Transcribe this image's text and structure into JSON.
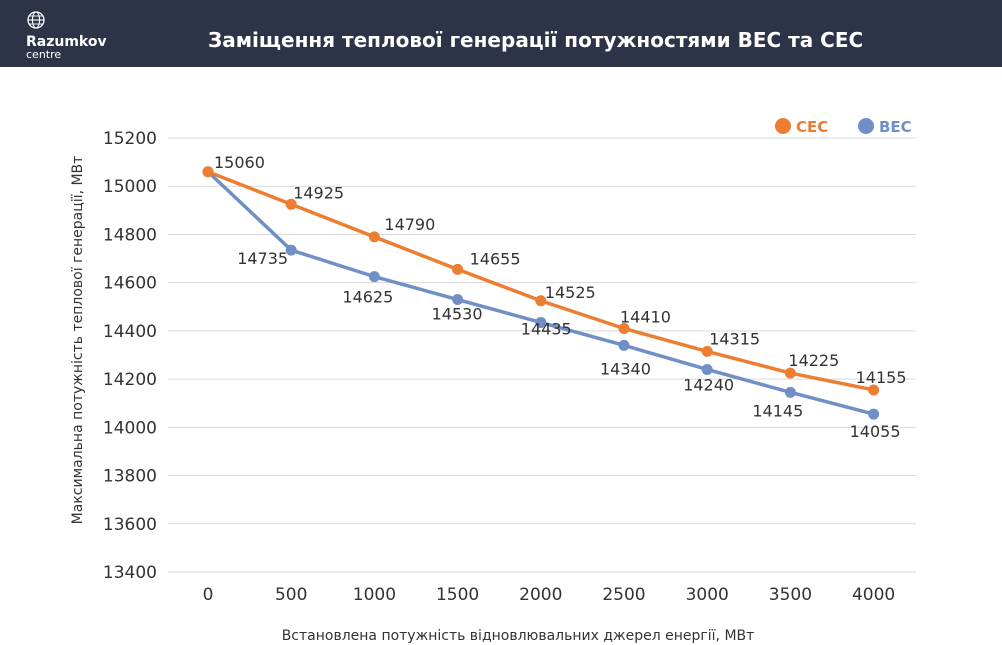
{
  "header": {
    "logo_name": "Razumkov",
    "logo_sub": "centre",
    "title": "Заміщення теплової генерації потужностями ВЕС та СЕС"
  },
  "colors": {
    "header_bg": "#2e3447",
    "ses": "#ed7d31",
    "wes": "#6f8fc6",
    "grid": "#d9d9d9"
  },
  "chart_data": {
    "type": "line",
    "title": "Заміщення теплової генерації потужностями ВЕС та СЕС",
    "xlabel": "Встановлена потужність відновлювальних джерел енергії, МВт",
    "ylabel": "Максимальна потужність теплової генерації, МВт",
    "x": [
      0,
      500,
      1000,
      1500,
      2000,
      2500,
      3000,
      3500,
      4000
    ],
    "x_tick_labels": [
      "0",
      "500",
      "1000",
      "1500",
      "2000",
      "2500",
      "3000",
      "3500",
      "4000"
    ],
    "ylim": [
      13400,
      15200
    ],
    "y_tick_labels": [
      "13400",
      "13600",
      "13800",
      "14000",
      "14200",
      "14400",
      "14600",
      "14800",
      "15000",
      "15200"
    ],
    "grid": true,
    "legend_position": "top-right",
    "series": [
      {
        "name": "СЕС",
        "color": "#ed7d31",
        "values": [
          15060,
          14925,
          14790,
          14655,
          14525,
          14410,
          14315,
          14225,
          14155
        ],
        "labels": [
          "15060",
          "14925",
          "14790",
          "14655",
          "14525",
          "14410",
          "14315",
          "14225",
          "14155"
        ]
      },
      {
        "name": "ВЕС",
        "color": "#6f8fc6",
        "values": [
          15060,
          14735,
          14625,
          14530,
          14435,
          14340,
          14240,
          14145,
          14055
        ],
        "labels": [
          "",
          "14735",
          "14625",
          "14530",
          "14435",
          "14340",
          "14240",
          "14145",
          "14055"
        ]
      }
    ]
  }
}
